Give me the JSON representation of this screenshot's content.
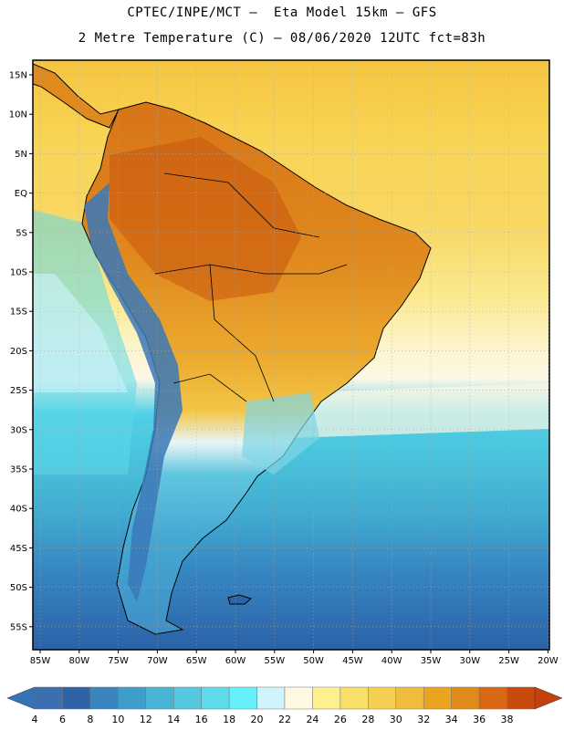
{
  "header": {
    "line1": "CPTEC/INPE/MCT –  Eta Model 15km – GFS",
    "line2": "2 Metre Temperature (C) – 08/06/2020 12UTC fct=83h"
  },
  "axes": {
    "lon_ticks": [
      "85W",
      "80W",
      "75W",
      "70W",
      "65W",
      "60W",
      "55W",
      "50W",
      "45W",
      "40W",
      "35W",
      "30W",
      "25W",
      "20W"
    ],
    "lat_ticks": [
      "15N",
      "10N",
      "5N",
      "EQ",
      "5S",
      "10S",
      "15S",
      "20S",
      "25S",
      "30S",
      "35S",
      "40S",
      "45S",
      "50S",
      "55S"
    ],
    "lon_range": [
      -86,
      -20
    ],
    "lat_range": [
      17,
      -58
    ],
    "grid": "dotted"
  },
  "colorbar": {
    "labels": [
      "4",
      "6",
      "8",
      "10",
      "12",
      "14",
      "16",
      "18",
      "20",
      "22",
      "24",
      "26",
      "28",
      "30",
      "32",
      "34",
      "36",
      "38"
    ],
    "colors": [
      "#3a6fb0",
      "#2f63a8",
      "#3a84c0",
      "#3f9ec9",
      "#49b5d6",
      "#55c8e0",
      "#5fdcec",
      "#66f0fa",
      "#cff4fb",
      "#fff8e0",
      "#fdf08e",
      "#f9df6a",
      "#f5cf52",
      "#efbc3e",
      "#eaa420",
      "#e08a1c",
      "#d86814",
      "#c84a0c"
    ],
    "low_color": "#3573b8",
    "high_color": "#c2410c"
  }
}
